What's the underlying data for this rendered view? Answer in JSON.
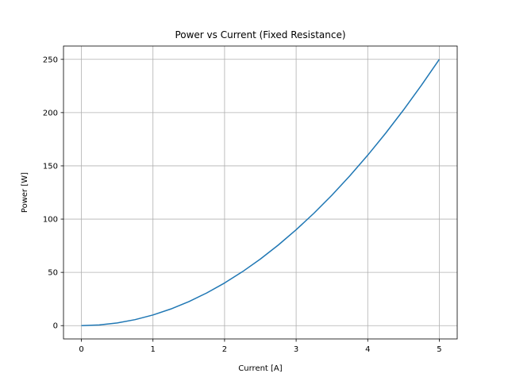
{
  "chart_data": {
    "type": "line",
    "title": "Power vs Current (Fixed Resistance)",
    "xlabel": "Current [A]",
    "ylabel": "Power [W]",
    "xlim": [
      -0.25,
      5.25
    ],
    "ylim": [
      -12.5,
      262.5
    ],
    "xticks": [
      0,
      1,
      2,
      3,
      4,
      5
    ],
    "yticks": [
      0,
      50,
      100,
      150,
      200,
      250
    ],
    "grid": true,
    "series": [
      {
        "color": "#1f77b4",
        "x": [
          0,
          0.25,
          0.5,
          0.75,
          1,
          1.25,
          1.5,
          1.75,
          2,
          2.25,
          2.5,
          2.75,
          3,
          3.25,
          3.5,
          3.75,
          4,
          4.25,
          4.5,
          4.75,
          5
        ],
        "y": [
          0,
          0.625,
          2.5,
          5.625,
          10,
          15.625,
          22.5,
          30.625,
          40,
          50.625,
          62.5,
          75.625,
          90,
          105.625,
          122.5,
          140.625,
          160,
          180.625,
          202.5,
          225.625,
          250
        ]
      }
    ]
  }
}
